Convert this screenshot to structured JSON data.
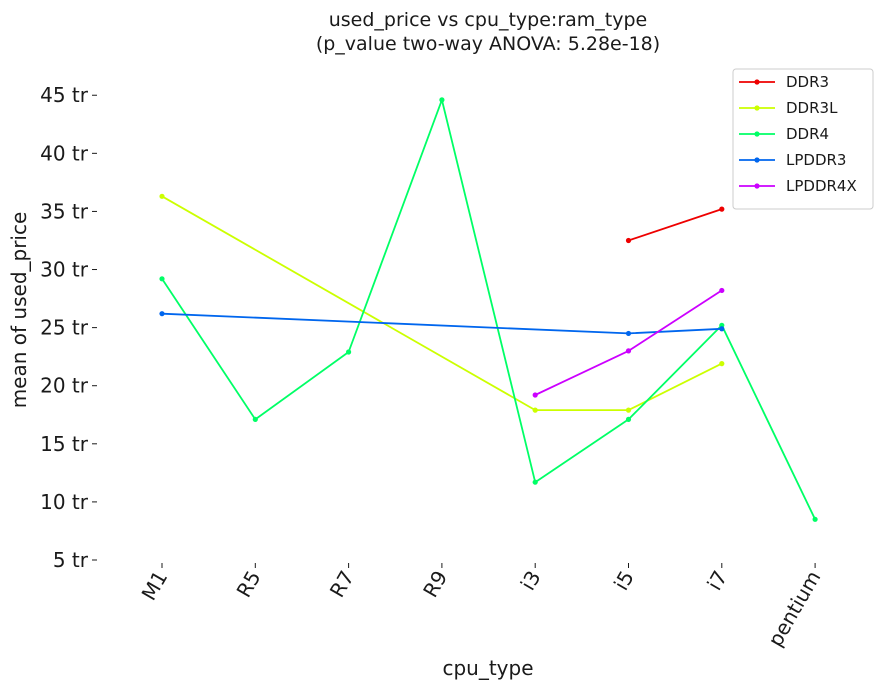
{
  "chart_data": {
    "type": "line",
    "title_line1": "used_price vs cpu_type:ram_type",
    "title_line2": "(p_value two-way ANOVA: 5.28e-18)",
    "xlabel": "cpu_type",
    "ylabel": "mean of used_price",
    "categories": [
      "M1",
      "R5",
      "R7",
      "R9",
      "i3",
      "i5",
      "i7",
      "pentium"
    ],
    "ylim": [
      5,
      47
    ],
    "yticks": [
      5,
      10,
      15,
      20,
      25,
      30,
      35,
      40,
      45
    ],
    "ytick_suffix": " tr",
    "grid": false,
    "legend_position": "top-right",
    "series": [
      {
        "name": "DDR3",
        "color": "#ee0000",
        "values": [
          null,
          null,
          null,
          null,
          null,
          32.5,
          35.2,
          null
        ]
      },
      {
        "name": "DDR3L",
        "color": "#ccff00",
        "values": [
          36.3,
          null,
          null,
          null,
          17.9,
          17.9,
          21.9,
          null
        ]
      },
      {
        "name": "DDR4",
        "color": "#00ff66",
        "values": [
          29.2,
          17.1,
          22.9,
          44.6,
          11.7,
          17.1,
          25.2,
          8.5
        ]
      },
      {
        "name": "LPDDR3",
        "color": "#0066ee",
        "values": [
          26.2,
          null,
          null,
          null,
          null,
          24.5,
          24.9,
          null
        ]
      },
      {
        "name": "LPDDR4X",
        "color": "#cc00ff",
        "values": [
          null,
          null,
          null,
          null,
          19.2,
          23.0,
          28.2,
          null
        ]
      }
    ]
  }
}
